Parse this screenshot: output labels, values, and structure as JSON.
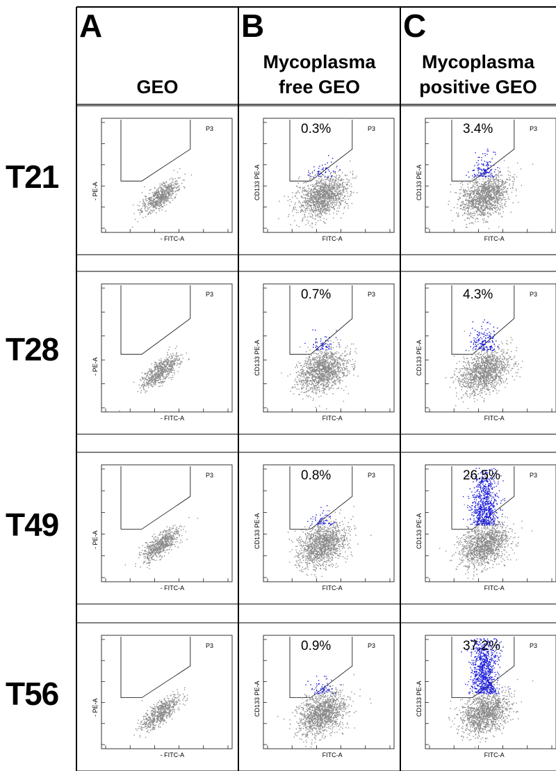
{
  "figure": {
    "columns": [
      {
        "letter": "A",
        "title_lines": [
          "",
          "GEO"
        ]
      },
      {
        "letter": "B",
        "title_lines": [
          "Mycoplasma",
          "free GEO"
        ]
      },
      {
        "letter": "C",
        "title_lines": [
          "Mycoplasma",
          "positive GEO"
        ]
      }
    ],
    "rows": [
      {
        "label": "T21",
        "panels": [
          {
            "ylabel": "- PE-A",
            "xlabel": "- FITC-A",
            "gate": "P3",
            "percent": ""
          },
          {
            "ylabel": "CD133 PE-A",
            "xlabel": "FITC-A",
            "gate": "P3",
            "percent": "0.3%"
          },
          {
            "ylabel": "CD133 PE-A",
            "xlabel": "FITC-A",
            "gate": "P3",
            "percent": "3.4%"
          }
        ]
      },
      {
        "label": "T28",
        "panels": [
          {
            "ylabel": "- PE-A",
            "xlabel": "- FITC-A",
            "gate": "P3",
            "percent": ""
          },
          {
            "ylabel": "CD133 PE-A",
            "xlabel": "FITC-A",
            "gate": "P3",
            "percent": "0.7%"
          },
          {
            "ylabel": "CD133 PE-A",
            "xlabel": "FITC-A",
            "gate": "P3",
            "percent": "4.3%"
          }
        ]
      },
      {
        "label": "T49",
        "panels": [
          {
            "ylabel": "- PE-A",
            "xlabel": "- FITC-A",
            "gate": "P3",
            "percent": ""
          },
          {
            "ylabel": "CD133 PE-A",
            "xlabel": "FITC-A",
            "gate": "P3",
            "percent": "0.8%"
          },
          {
            "ylabel": "CD133 PE-A",
            "xlabel": "FITC-A",
            "gate": "P3",
            "percent": "26.5%"
          }
        ]
      },
      {
        "label": "T56",
        "panels": [
          {
            "ylabel": "- PE-A",
            "xlabel": "- FITC-A",
            "gate": "P3",
            "percent": ""
          },
          {
            "ylabel": "CD133 PE-A",
            "xlabel": "FITC-A",
            "gate": "P3",
            "percent": "0.9%"
          },
          {
            "ylabel": "CD133 PE-A",
            "xlabel": "FITC-A",
            "gate": "P3",
            "percent": "37.2%"
          }
        ]
      }
    ],
    "colors": {
      "population": "#8a8a8a",
      "gated": "#1a1adb",
      "border": "#000000"
    }
  }
}
